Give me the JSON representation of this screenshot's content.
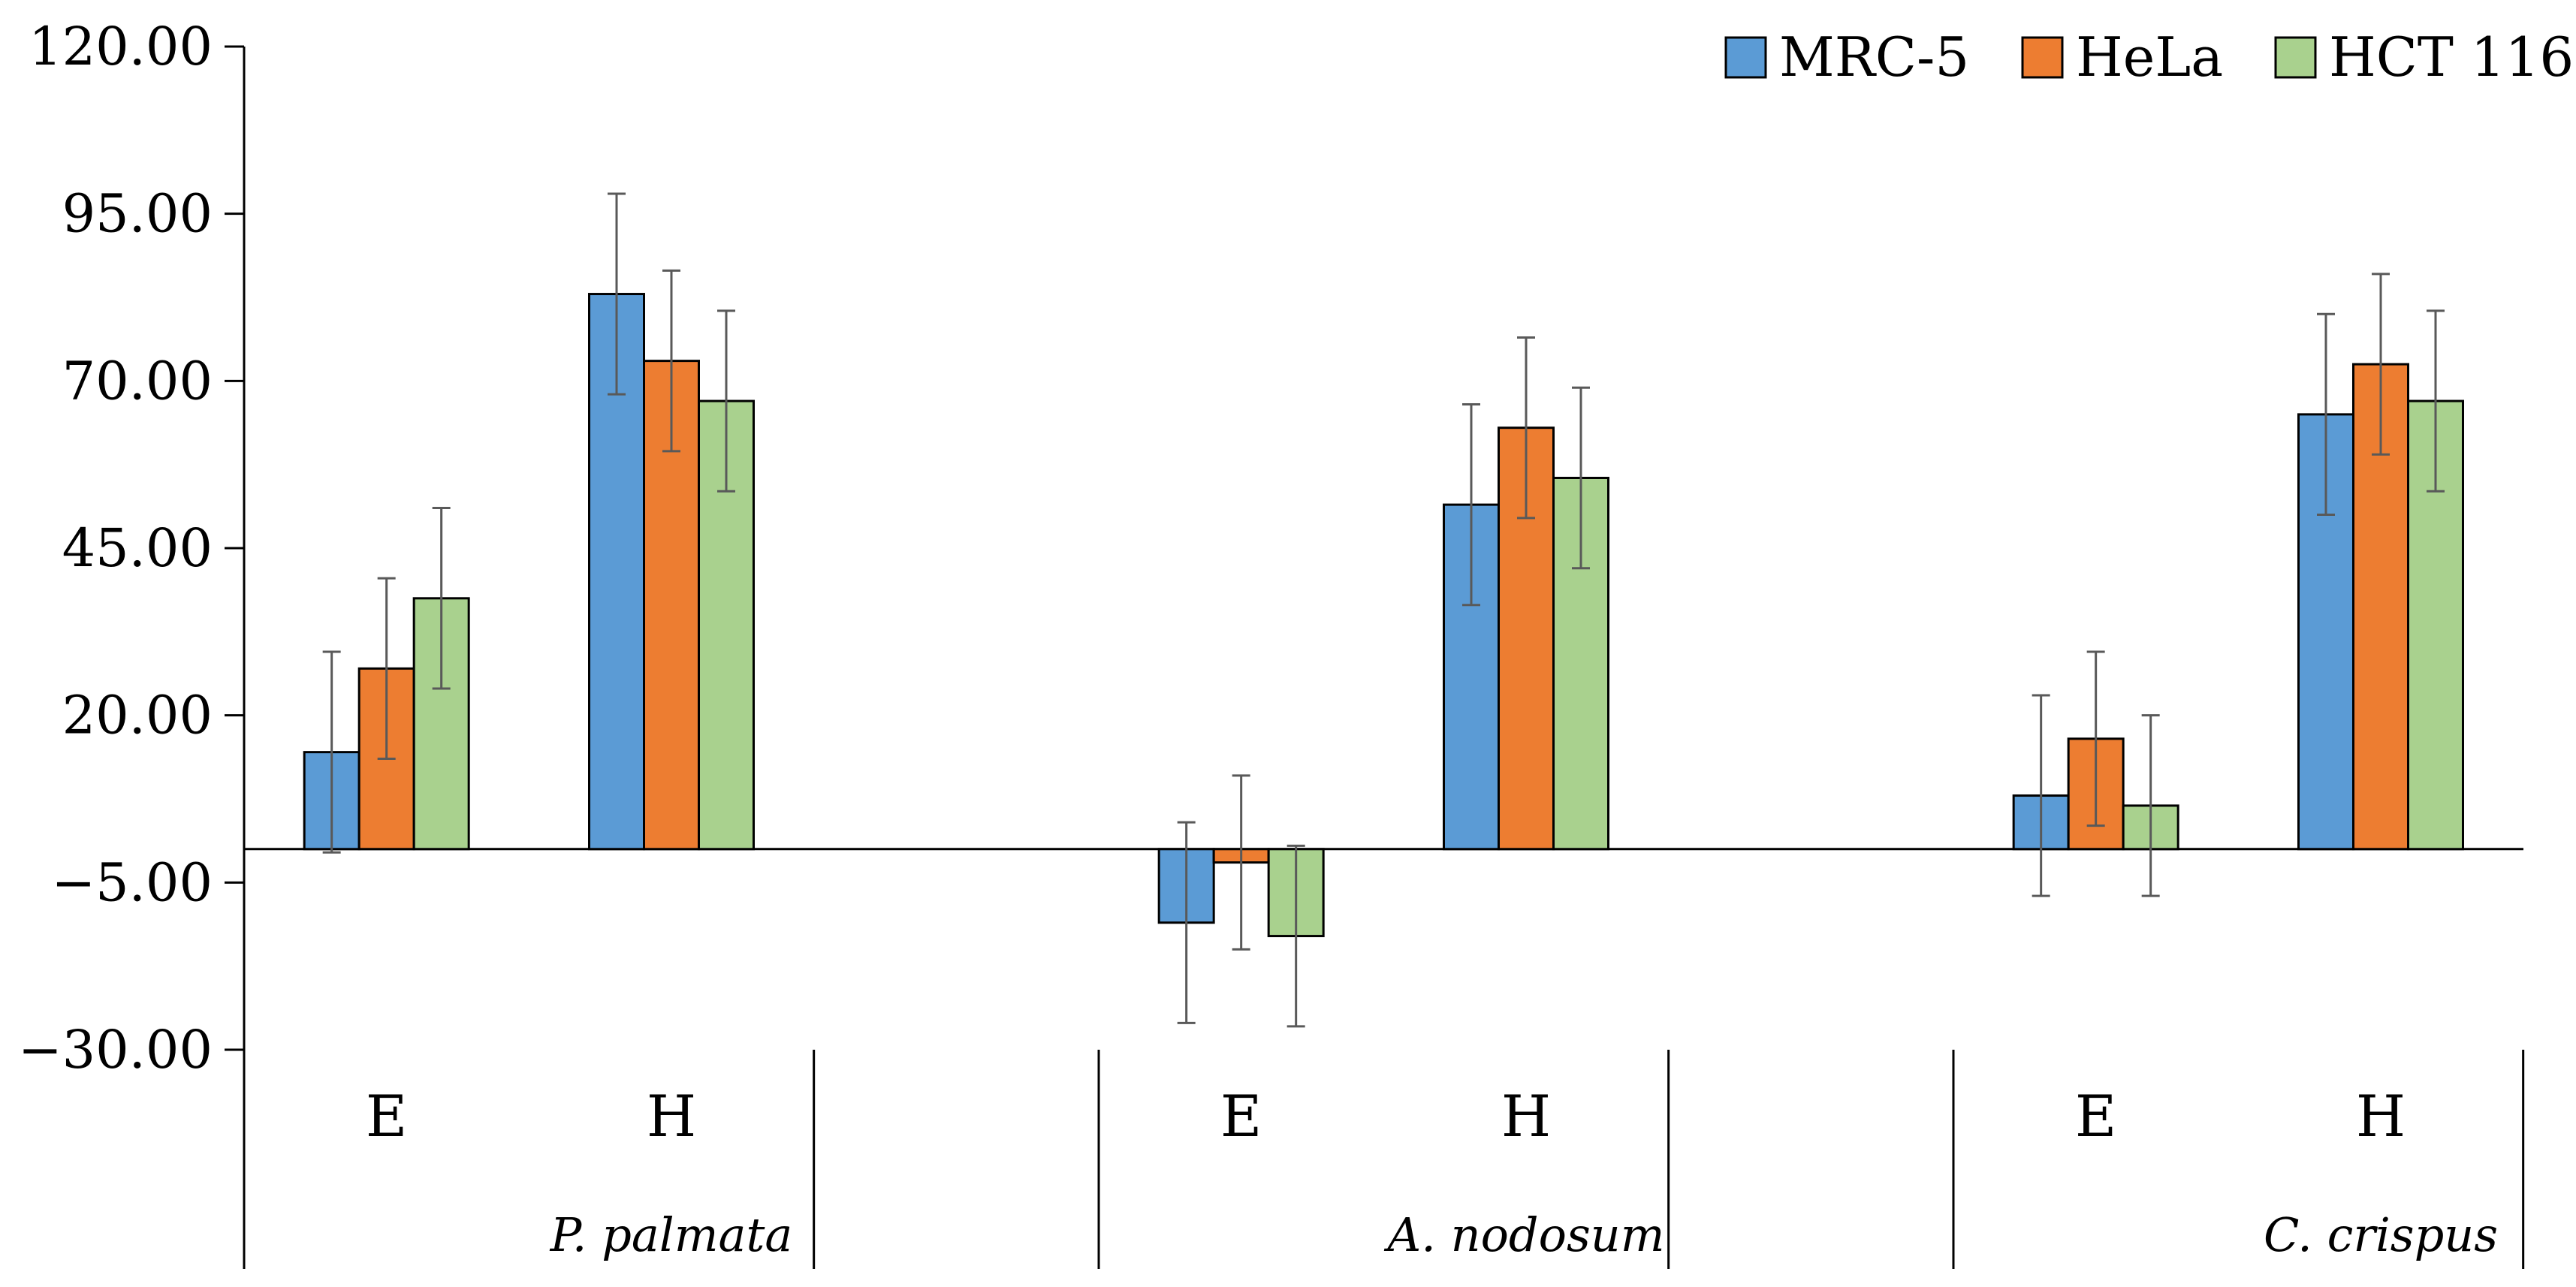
{
  "chart_data": {
    "type": "bar",
    "title": "",
    "xlabel": "",
    "ylabel": "",
    "ylim": [
      -30,
      120
    ],
    "yticks": [
      120,
      95,
      70,
      45,
      20,
      -5,
      -30
    ],
    "ytick_labels": [
      "120.00",
      "95.00",
      "70.00",
      "45.00",
      "20.00",
      "−5.00",
      "−30.00"
    ],
    "grid": false,
    "legend_position": "top-right",
    "groups": [
      {
        "name": "P. palmata",
        "slots": [
          "E",
          "H",
          ""
        ]
      },
      {
        "name": "A. nodosum",
        "slots": [
          "E",
          "H",
          ""
        ]
      },
      {
        "name": "C. crispus",
        "slots": [
          "E",
          "H"
        ]
      }
    ],
    "categories": [
      "P. palmata E",
      "P. palmata H",
      "",
      "A. nodosum E",
      "A. nodosum H",
      "",
      "C. crispus E",
      "C. crispus H"
    ],
    "series": [
      {
        "name": "MRC-5",
        "color": "#5b9bd5",
        "values": [
          14.5,
          83.0,
          null,
          -11.0,
          51.5,
          null,
          8.0,
          65.0
        ],
        "errors": [
          15.0,
          15.0,
          null,
          15.0,
          15.0,
          null,
          15.0,
          15.0
        ]
      },
      {
        "name": "HeLa",
        "color": "#ed7d31",
        "values": [
          27.0,
          73.0,
          null,
          -2.0,
          63.0,
          null,
          16.5,
          72.5
        ],
        "errors": [
          13.5,
          13.5,
          null,
          13.0,
          13.5,
          null,
          13.0,
          13.5
        ]
      },
      {
        "name": "HCT 116",
        "color": "#a9d18e",
        "values": [
          37.5,
          67.0,
          null,
          -13.0,
          55.5,
          null,
          6.5,
          67.0
        ],
        "errors": [
          13.5,
          13.5,
          null,
          13.5,
          13.5,
          null,
          13.5,
          13.5
        ]
      }
    ]
  }
}
